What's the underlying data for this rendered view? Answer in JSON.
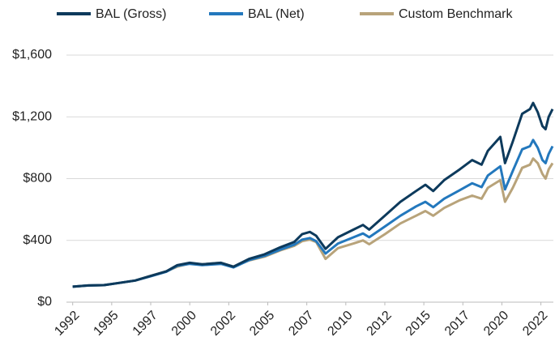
{
  "chart_data": {
    "type": "line",
    "x": [
      1992,
      1993,
      1994,
      1995,
      1996,
      1997,
      1998,
      1998.7,
      1999.5,
      2000.3,
      2001.5,
      2002.3,
      2003.3,
      2004.3,
      2005.3,
      2006.2,
      2006.7,
      2007.2,
      2007.6,
      2008.2,
      2009.0,
      2010.0,
      2010.6,
      2011.0,
      2012.0,
      2013.0,
      2014.0,
      2014.6,
      2015.1,
      2015.8,
      2016.8,
      2017.6,
      2018.2,
      2018.6,
      2019.4,
      2019.7,
      2020.2,
      2020.8,
      2021.3,
      2021.5,
      2021.8,
      2022.1,
      2022.3,
      2022.5,
      2022.75
    ],
    "series": [
      {
        "name": "BAL (Gross)",
        "color": "#0d3a5c",
        "values": [
          100,
          108,
          110,
          125,
          140,
          170,
          200,
          240,
          255,
          245,
          255,
          230,
          280,
          310,
          355,
          390,
          440,
          455,
          430,
          345,
          420,
          470,
          500,
          470,
          560,
          650,
          720,
          760,
          720,
          790,
          860,
          920,
          890,
          980,
          1070,
          900,
          1040,
          1220,
          1250,
          1290,
          1230,
          1140,
          1120,
          1200,
          1250
        ]
      },
      {
        "name": "BAL (Net)",
        "color": "#2378bd",
        "values": [
          100,
          108,
          110,
          125,
          140,
          168,
          197,
          235,
          248,
          240,
          248,
          225,
          272,
          300,
          340,
          372,
          405,
          415,
          395,
          315,
          380,
          420,
          445,
          420,
          490,
          560,
          620,
          650,
          615,
          670,
          725,
          770,
          745,
          820,
          880,
          730,
          850,
          990,
          1010,
          1050,
          1000,
          920,
          900,
          960,
          1010
        ]
      },
      {
        "name": "Custom Benchmark",
        "color": "#b8a37a",
        "values": [
          100,
          108,
          110,
          125,
          140,
          170,
          200,
          230,
          250,
          245,
          255,
          230,
          270,
          295,
          335,
          365,
          395,
          405,
          390,
          280,
          350,
          380,
          400,
          375,
          440,
          510,
          560,
          590,
          560,
          610,
          660,
          690,
          670,
          740,
          790,
          650,
          740,
          870,
          890,
          930,
          900,
          830,
          800,
          860,
          900
        ]
      }
    ],
    "xlim": [
      1991.6,
      2022.8
    ],
    "xticks": [
      {
        "value": 1992,
        "label": "1992"
      },
      {
        "value": 1994.5,
        "label": "1995"
      },
      {
        "value": 1997,
        "label": "1997"
      },
      {
        "value": 1999.5,
        "label": "2000"
      },
      {
        "value": 2002,
        "label": "2002"
      },
      {
        "value": 2004.5,
        "label": "2005"
      },
      {
        "value": 2007,
        "label": "2007"
      },
      {
        "value": 2009.5,
        "label": "2010"
      },
      {
        "value": 2012,
        "label": "2012"
      },
      {
        "value": 2014.5,
        "label": "2015"
      },
      {
        "value": 2017,
        "label": "2017"
      },
      {
        "value": 2019.5,
        "label": "2020"
      },
      {
        "value": 2022,
        "label": "2022"
      }
    ],
    "ylim": [
      0,
      1600
    ],
    "yticks": [
      {
        "value": 0,
        "label": "$0"
      },
      {
        "value": 400,
        "label": "$400"
      },
      {
        "value": 800,
        "label": "$800"
      },
      {
        "value": 1200,
        "label": "$1,200"
      },
      {
        "value": 1600,
        "label": "$1,600"
      }
    ],
    "grid": true,
    "legend": "top"
  }
}
